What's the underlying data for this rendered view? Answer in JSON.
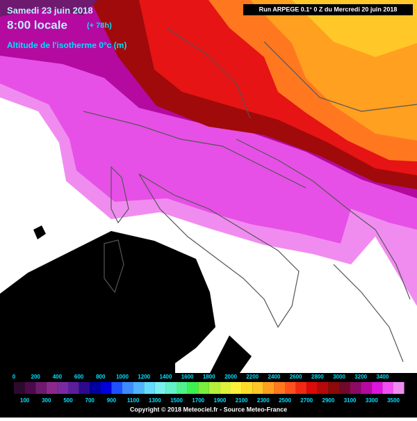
{
  "header": {
    "date": "Samedi 23 juin 2018",
    "time": "8:00 locale",
    "lead": "(+ 78h)",
    "parameter": "Altitude de l'isotherme 0°c (m)",
    "run": "Run ARPEGE 0.1° 0 Z du Mercredi 20 juin 2018"
  },
  "legend": {
    "levels": [
      0,
      100,
      200,
      300,
      400,
      500,
      600,
      700,
      800,
      900,
      1000,
      1100,
      1200,
      1300,
      1400,
      1500,
      1600,
      1700,
      1800,
      1900,
      2000,
      2100,
      2200,
      2300,
      2400,
      2500,
      2600,
      2700,
      2800,
      2900,
      3000,
      3100,
      3200,
      3300,
      3400,
      3500
    ],
    "colors": [
      "#2d0a2d",
      "#4b0a4b",
      "#6e1a6e",
      "#8c288c",
      "#7a2aa0",
      "#5a1e9a",
      "#2d0a8c",
      "#0000a0",
      "#0000dc",
      "#1e50ff",
      "#3c8cff",
      "#50b4ff",
      "#64dcff",
      "#78f0f0",
      "#64f0c8",
      "#50f08c",
      "#3cf050",
      "#78f03c",
      "#b4f03c",
      "#dcf03c",
      "#fff03c",
      "#ffdc28",
      "#ffc828",
      "#ffa01e",
      "#ff781e",
      "#ff501e",
      "#f02814",
      "#dc0a0a",
      "#b40a0a",
      "#8c0a0a",
      "#6e0a28",
      "#8c0a64",
      "#b40aa0",
      "#dc14dc",
      "#f050f0",
      "#f08cf0"
    ]
  },
  "footer": {
    "copyright": "Copyright © 2018 Meteociel.fr - Source Meteo-France"
  }
}
